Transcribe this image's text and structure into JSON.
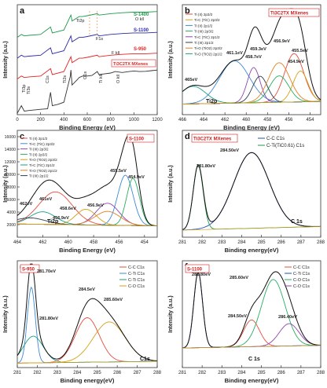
{
  "panels": [
    {
      "id": "a",
      "letter": "a",
      "xlabel": "Binding Energy (eV)",
      "ylabel": "Intensity (a.u.)",
      "legend_label": "Ti3C2TX MXenes",
      "series_labels": [
        "S-1400",
        "S-1100",
        "S-950"
      ],
      "peak_labels": [
        "Ti2p",
        "O kll",
        "F1s",
        "F kll",
        "C1s",
        "O1s",
        "Ti3p",
        "Ti3s",
        "Ti2s",
        "Ti kll",
        "O kll"
      ]
    },
    {
      "id": "b",
      "letter": "b",
      "title": "Ti3C2TX MXenes",
      "xlabel": "Binding Energy (eV)",
      "ylabel": "Intensity (a.u.)",
      "region_label": "Ti2p",
      "legend": [
        "Ti (II)   2p3/2",
        "Ti-C (TiC)  2p3/2",
        "Ti (II)   2p1/2",
        "Ti (III)  2p3/2",
        "Ti-C (TiC)  2p1/2",
        "Ti (III)  2p1/2",
        "Ti-O (TiO2)  2p3/2",
        "Ti-O (TiO2)  2p1/2"
      ],
      "peak_labels": [
        "465eV",
        "461.1eV",
        "459.3eV",
        "458.7eV",
        "456.9eV",
        "455.5eV",
        "454.9eV"
      ]
    },
    {
      "id": "c",
      "letter": "c",
      "title": "S-1100",
      "xlabel": "Binding Energy (eV)",
      "ylabel": "Intensity (a.u.)",
      "region_label": "Ti2p",
      "legend": [
        "Ti (II)   2p1/2",
        "Ti-C (TiC)  2p3/2",
        "Ti (III)  2p3/2",
        "Ti (II)   2p3/2",
        "Ti-O (TiO2)  2p3/2",
        "Ti-C (TiC)  2p1/2",
        "Ti-O (TiO2)  2p1/2",
        "Ti (III)  2p1/2"
      ],
      "peak_labels": [
        "462eV",
        "461eV",
        "458.6eV",
        "456.9eV",
        "456.9eV",
        "455.5eV",
        "454.9eV"
      ]
    },
    {
      "id": "d",
      "letter": "d",
      "title": "Ti3C2TX MXenes",
      "xlabel": "Binding energy(eV)",
      "ylabel": "Intensity (a.u.)",
      "region_label": "C 1s",
      "legend": [
        "C-C     C1s",
        "C-Ti(TiC0.61)  C1s"
      ],
      "peak_labels": [
        "284.50eV",
        "281.80eV"
      ]
    },
    {
      "id": "e",
      "letter": "e",
      "title": "S-950",
      "xlabel": "Binding energy(eV)",
      "ylabel": "Intensity (a.u.)",
      "region_label": "C1s",
      "legend": [
        "C-C  C1s",
        "C-Ti  C1s",
        "C-Ti  C1s",
        "C-O  C1s"
      ],
      "peak_labels": [
        "281.70eV",
        "284.5eV",
        "285.60eV",
        "281.80eV"
      ]
    },
    {
      "id": "f",
      "letter": "f",
      "title": "S-1100",
      "xlabel": "Binding energy(eV)",
      "ylabel": "Intensity (a.u.)",
      "region_label": "C 1s",
      "legend": [
        "C-C  C1s",
        "C-Ti  C1s",
        "C-O  C1s",
        "C-O  C1s"
      ],
      "peak_labels": [
        "281.80eV",
        "285.60eV",
        "284.50eV",
        "286.40eV"
      ]
    }
  ],
  "chart_data": [
    {
      "type": "line",
      "panel": "a",
      "xlabel": "Binding Energy (eV)",
      "ylabel": "Intensity (a.u.)",
      "xlim": [
        0,
        1200
      ],
      "x_ticks": [
        0,
        200,
        400,
        600,
        800,
        1000,
        1200
      ],
      "x_tick_labels": [
        "0",
        "200",
        "400",
        "600",
        "800",
        "1000",
        "1200"
      ],
      "series": [
        {
          "name": "Ti3C2TX MXenes",
          "color": "#333333",
          "offset": 0,
          "x": [
            0,
            35,
            60,
            100,
            150,
            200,
            260,
            285,
            300,
            350,
            400,
            455,
            460,
            470,
            520,
            530,
            560,
            600,
            640,
            686,
            700,
            740,
            800,
            840,
            900,
            960,
            1000,
            1050,
            1100,
            1150,
            1200
          ],
          "y": [
            0.05,
            0.3,
            0.12,
            0.14,
            0.16,
            0.18,
            0.2,
            0.75,
            0.3,
            0.35,
            0.42,
            1.3,
            1.5,
            1.0,
            1.2,
            1.25,
            1.3,
            1.3,
            1.32,
            1.45,
            1.35,
            1.37,
            1.4,
            1.45,
            1.42,
            1.45,
            1.47,
            1.45,
            1.46,
            1.48,
            1.5
          ]
        },
        {
          "name": "S-950",
          "color": "#e32222",
          "offset": 1.15,
          "x": [
            0,
            35,
            60,
            100,
            200,
            285,
            300,
            400,
            460,
            470,
            530,
            560,
            600,
            686,
            700,
            800,
            900,
            1000,
            1100,
            1200
          ],
          "y": [
            0.05,
            0.15,
            0.1,
            0.12,
            0.15,
            0.4,
            0.2,
            0.3,
            0.8,
            0.6,
            0.75,
            0.75,
            0.78,
            0.85,
            0.8,
            0.85,
            0.88,
            0.9,
            0.9,
            0.92
          ]
        },
        {
          "name": "S-1100",
          "color": "#2a2aaa",
          "offset": 1.85,
          "x": [
            0,
            35,
            60,
            100,
            200,
            285,
            300,
            400,
            460,
            470,
            530,
            560,
            600,
            686,
            700,
            800,
            900,
            1000,
            1100,
            1200
          ],
          "y": [
            0.05,
            0.15,
            0.1,
            0.12,
            0.15,
            0.4,
            0.2,
            0.3,
            0.8,
            0.6,
            0.75,
            0.75,
            0.78,
            0.85,
            0.8,
            0.85,
            0.88,
            0.9,
            0.9,
            0.92
          ]
        },
        {
          "name": "S-1400",
          "color": "#1f9a4a",
          "offset": 2.55,
          "x": [
            0,
            35,
            60,
            100,
            200,
            285,
            300,
            400,
            460,
            470,
            530,
            560,
            600,
            686,
            700,
            800,
            900,
            1000,
            1100,
            1200
          ],
          "y": [
            0.05,
            0.15,
            0.1,
            0.12,
            0.15,
            0.4,
            0.2,
            0.3,
            0.8,
            0.6,
            0.75,
            0.75,
            0.78,
            0.85,
            0.8,
            0.85,
            0.88,
            0.9,
            0.9,
            0.92
          ]
        }
      ],
      "ylim": [
        0,
        3.7
      ]
    },
    {
      "type": "line",
      "panel": "b",
      "xlabel": "Binding Energy (eV)",
      "ylabel": "Intensity (a.u.)",
      "xlim": [
        466,
        453
      ],
      "x_ticks": [
        466,
        464,
        462,
        460,
        458,
        456,
        454
      ],
      "ylim": [
        0,
        1.25
      ],
      "peaks": [
        {
          "name": "Ti (II) 2p3/2",
          "color": "#e74c3c",
          "center": 455.5,
          "height": 0.55,
          "width": 0.9
        },
        {
          "name": "Ti-C (TiC) 2p3/2",
          "color": "#d4a017",
          "center": 454.9,
          "height": 0.35,
          "width": 0.7
        },
        {
          "name": "Ti (II) 2p1/2",
          "color": "#3b8ad9",
          "center": 461.1,
          "height": 0.48,
          "width": 1.4
        },
        {
          "name": "Ti (III) 2p3/2",
          "color": "#27ae60",
          "center": 456.9,
          "height": 0.3,
          "width": 0.9
        },
        {
          "name": "Ti-C (TiC) 2p1/2",
          "color": "#8e44ad",
          "center": 459.3,
          "height": 0.4,
          "width": 0.6
        },
        {
          "name": "Ti (III) 2p1/2",
          "color": "#2c3e50",
          "center": 458.7,
          "height": 0.3,
          "width": 0.7
        },
        {
          "name": "Ti-O (TiO2) 2p3/2",
          "color": "#e67e22",
          "center": 456.9,
          "height": 0.45,
          "width": 1.0
        },
        {
          "name": "Ti-O (TiO2) 2p1/2",
          "color": "#16a085",
          "center": 465.0,
          "height": 0.2,
          "width": 1.2
        }
      ]
    },
    {
      "type": "line",
      "panel": "c",
      "xlabel": "Binding Energy (eV)",
      "ylabel": "Intensity (a.u.)",
      "xlim": [
        464,
        453
      ],
      "x_ticks": [
        464,
        462,
        460,
        458,
        456,
        454
      ],
      "y_ticks": [
        2000,
        4000,
        6000,
        8000,
        10000,
        12000,
        14000,
        16000
      ],
      "ylim": [
        0,
        17000
      ],
      "peaks": [
        {
          "name": "Ti (II) 2p1/2",
          "color": "#e74c3c",
          "center": 461,
          "height": 5200,
          "width": 1.3
        },
        {
          "name": "Ti-C (TiC) 2p3/2",
          "color": "#3b8ad9",
          "center": 455.5,
          "height": 8000,
          "width": 0.6
        },
        {
          "name": "Ti (III) 2p3/2",
          "color": "#8e44ad",
          "center": 456.9,
          "height": 3500,
          "width": 0.9
        },
        {
          "name": "Ti (II) 2p3/2",
          "color": "#27ae60",
          "center": 454.9,
          "height": 7500,
          "width": 0.5
        },
        {
          "name": "Ti-O (TiO2) 2p3/2",
          "color": "#d4a017",
          "center": 458.6,
          "height": 2500,
          "width": 0.8
        },
        {
          "name": "Ti-C (TiC) 2p1/2",
          "color": "#16a085",
          "center": 462,
          "height": 2000,
          "width": 1.0
        },
        {
          "name": "Ti-O (TiO2) 2p1/2",
          "color": "#e67e22",
          "center": 456.9,
          "height": 2200,
          "width": 1.0
        },
        {
          "name": "Ti (III) 2p1/2",
          "color": "#2c3e50",
          "center": 463,
          "height": 1000,
          "width": 1.2
        }
      ]
    },
    {
      "type": "line",
      "panel": "d",
      "xlabel": "Binding energy(eV)",
      "ylabel": "Intensity (a.u.)",
      "xlim": [
        281,
        288
      ],
      "x_ticks": [
        281,
        282,
        283,
        284,
        285,
        286,
        287,
        288
      ],
      "ylim": [
        0,
        1.2
      ],
      "peaks": [
        {
          "name": "C-C C1s",
          "color": "#1f4fb8",
          "center": 284.5,
          "height": 0.85,
          "width": 0.9
        },
        {
          "name": "C-Ti(TiC0.61) C1s",
          "color": "#1f9a4a",
          "center": 281.8,
          "height": 0.72,
          "width": 0.25
        }
      ]
    },
    {
      "type": "line",
      "panel": "e",
      "xlabel": "Binding energy(eV)",
      "ylabel": "Intensity (a.u.)",
      "xlim": [
        281,
        288
      ],
      "x_ticks": [
        281,
        282,
        283,
        284,
        285,
        286,
        287,
        288
      ],
      "ylim": [
        0,
        1.2
      ],
      "peaks": [
        {
          "name": "C-C C1s",
          "color": "#e74c3c",
          "center": 284.5,
          "height": 0.5,
          "width": 0.6
        },
        {
          "name": "C-Ti C1s",
          "color": "#3b8ad9",
          "center": 281.7,
          "height": 0.85,
          "width": 0.2
        },
        {
          "name": "C-Ti C1s",
          "color": "#16a085",
          "center": 281.8,
          "height": 0.3,
          "width": 0.5
        },
        {
          "name": "C-O C1s",
          "color": "#d4a017",
          "center": 285.6,
          "height": 0.45,
          "width": 0.8
        }
      ]
    },
    {
      "type": "line",
      "panel": "f",
      "xlabel": "Binding energy(eV)",
      "ylabel": "Intensity (a.u.)",
      "xlim": [
        281,
        288
      ],
      "x_ticks": [
        281,
        282,
        283,
        284,
        285,
        286,
        287,
        288
      ],
      "ylim": [
        0,
        1.2
      ],
      "peaks": [
        {
          "name": "C-C C1s",
          "color": "#e74c3c",
          "center": 284.5,
          "height": 0.3,
          "width": 0.4
        },
        {
          "name": "C-Ti C1s",
          "color": "#1f4fb8",
          "center": 281.8,
          "height": 0.85,
          "width": 0.22
        },
        {
          "name": "C-O C1s",
          "color": "#27ae60",
          "center": 285.6,
          "height": 0.75,
          "width": 0.6
        },
        {
          "name": "C-O C1s",
          "color": "#8e44ad",
          "center": 286.4,
          "height": 0.25,
          "width": 0.5
        }
      ]
    }
  ],
  "colors": {
    "frame": "#333333",
    "title_red": "#cc1e1e",
    "envelope": "#111111"
  }
}
